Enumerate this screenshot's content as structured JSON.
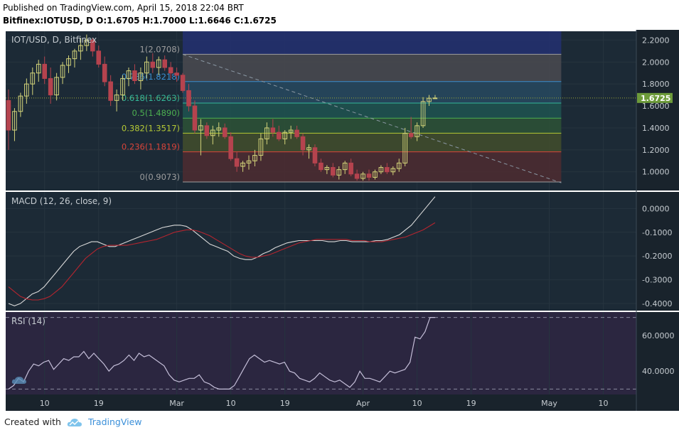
{
  "header": {
    "published": "Published on TradingView.com, April 15, 2018 22:04 BRT",
    "ohlc_line": "Bitfinex:IOTUSD, D  O:1.6705 H:1.7000 L:1.6646 C:1.6725"
  },
  "footer": {
    "created_with": "Created with",
    "brand": "TradingView"
  },
  "colors": {
    "background": "#1c2a36",
    "up": "#d4d47a",
    "down": "#b5434e",
    "last_price": "#6d9b3a",
    "macd_line": "#d9d9d9",
    "signal_line": "#b5252f",
    "rsi_line": "#c4bed8"
  },
  "chart_data": [
    {
      "type": "candlestick",
      "title": "IOT/USD, D, Bitfinex",
      "ylim": [
        0.83,
        2.28
      ],
      "y_ticks": [
        "2.2000",
        "2.0000",
        "1.8000",
        "1.6000",
        "1.4000",
        "1.2000",
        "1.0000"
      ],
      "y_tick_values": [
        2.2,
        2.0,
        1.8,
        1.6,
        1.4,
        1.2,
        1.0
      ],
      "x_ticks": [
        "10",
        "19",
        "Mar",
        "10",
        "19",
        "Apr",
        "10",
        "19",
        "May",
        "10"
      ],
      "x_tick_index": [
        6,
        15,
        28,
        37,
        46,
        59,
        68,
        77,
        90,
        99
      ],
      "last_price": 1.6725,
      "last_price_label": "1.6725",
      "candles": [
        [
          1.65,
          1.75,
          1.2,
          1.38
        ],
        [
          1.38,
          1.58,
          1.28,
          1.55
        ],
        [
          1.55,
          1.72,
          1.5,
          1.69
        ],
        [
          1.69,
          1.85,
          1.62,
          1.8
        ],
        [
          1.8,
          1.95,
          1.7,
          1.9
        ],
        [
          1.9,
          2.02,
          1.82,
          1.98
        ],
        [
          1.98,
          2.05,
          1.8,
          1.85
        ],
        [
          1.85,
          1.95,
          1.62,
          1.7
        ],
        [
          1.7,
          1.9,
          1.65,
          1.86
        ],
        [
          1.86,
          2.0,
          1.8,
          1.97
        ],
        [
          1.97,
          2.06,
          1.9,
          2.03
        ],
        [
          2.03,
          2.12,
          1.95,
          2.1
        ],
        [
          2.1,
          2.22,
          2.02,
          2.15
        ],
        [
          2.15,
          2.25,
          2.1,
          2.2
        ],
        [
          2.2,
          2.22,
          2.05,
          2.1
        ],
        [
          2.1,
          2.15,
          1.95,
          1.98
        ],
        [
          1.98,
          2.05,
          1.78,
          1.82
        ],
        [
          1.82,
          1.88,
          1.6,
          1.65
        ],
        [
          1.65,
          1.75,
          1.55,
          1.7
        ],
        [
          1.7,
          1.88,
          1.65,
          1.85
        ],
        [
          1.85,
          1.95,
          1.78,
          1.92
        ],
        [
          1.92,
          1.98,
          1.8,
          1.83
        ],
        [
          1.83,
          1.95,
          1.75,
          1.9
        ],
        [
          1.9,
          2.05,
          1.85,
          2.0
        ],
        [
          2.0,
          2.08,
          1.9,
          1.95
        ],
        [
          1.95,
          2.05,
          1.88,
          2.02
        ],
        [
          2.02,
          2.06,
          1.92,
          1.95
        ],
        [
          1.95,
          2.0,
          1.85,
          1.9
        ],
        [
          1.9,
          1.95,
          1.82,
          1.88
        ],
        [
          1.88,
          1.9,
          1.72,
          1.74
        ],
        [
          1.74,
          1.8,
          1.55,
          1.6
        ],
        [
          1.6,
          1.65,
          1.35,
          1.38
        ],
        [
          1.38,
          1.48,
          1.15,
          1.42
        ],
        [
          1.42,
          1.45,
          1.3,
          1.33
        ],
        [
          1.33,
          1.42,
          1.25,
          1.38
        ],
        [
          1.38,
          1.45,
          1.32,
          1.4
        ],
        [
          1.4,
          1.44,
          1.3,
          1.32
        ],
        [
          1.32,
          1.36,
          1.1,
          1.12
        ],
        [
          1.12,
          1.18,
          1.0,
          1.05
        ],
        [
          1.05,
          1.1,
          1.0,
          1.08
        ],
        [
          1.08,
          1.15,
          1.02,
          1.1
        ],
        [
          1.1,
          1.2,
          1.05,
          1.15
        ],
        [
          1.15,
          1.35,
          1.1,
          1.3
        ],
        [
          1.3,
          1.45,
          1.25,
          1.4
        ],
        [
          1.4,
          1.48,
          1.32,
          1.36
        ],
        [
          1.36,
          1.42,
          1.28,
          1.3
        ],
        [
          1.3,
          1.38,
          1.25,
          1.36
        ],
        [
          1.36,
          1.42,
          1.3,
          1.38
        ],
        [
          1.38,
          1.42,
          1.3,
          1.32
        ],
        [
          1.32,
          1.35,
          1.15,
          1.2
        ],
        [
          1.2,
          1.25,
          1.12,
          1.22
        ],
        [
          1.22,
          1.25,
          1.05,
          1.08
        ],
        [
          1.08,
          1.12,
          1.0,
          1.02
        ],
        [
          1.02,
          1.06,
          0.98,
          1.04
        ],
        [
          1.04,
          1.08,
          0.95,
          0.97
        ],
        [
          0.97,
          1.05,
          0.93,
          1.02
        ],
        [
          1.02,
          1.1,
          0.98,
          1.08
        ],
        [
          1.08,
          1.12,
          0.96,
          0.98
        ],
        [
          0.98,
          1.02,
          0.92,
          0.94
        ],
        [
          0.94,
          1.0,
          0.92,
          0.98
        ],
        [
          0.98,
          1.02,
          0.92,
          0.95
        ],
        [
          0.95,
          1.02,
          0.93,
          1.0
        ],
        [
          1.0,
          1.06,
          0.98,
          1.04
        ],
        [
          1.04,
          1.08,
          0.98,
          1.0
        ],
        [
          1.0,
          1.05,
          0.97,
          1.03
        ],
        [
          1.03,
          1.12,
          1.0,
          1.08
        ],
        [
          1.08,
          1.4,
          1.05,
          1.35
        ],
        [
          1.35,
          1.5,
          1.3,
          1.32
        ],
        [
          1.32,
          1.45,
          1.28,
          1.42
        ],
        [
          1.42,
          1.68,
          1.4,
          1.64
        ],
        [
          1.64,
          1.7,
          1.6,
          1.67
        ],
        [
          1.6705,
          1.7,
          1.6646,
          1.6725
        ]
      ],
      "fibonacci": [
        {
          "label": "1(2.0708)",
          "value": 2.0708,
          "color": "#9e9e9e",
          "fill": "#4a4a50"
        },
        {
          "label": "0.786(1.8218)",
          "value": 1.8218,
          "color": "#3b8ed0",
          "fill": "#27495f"
        },
        {
          "label": "0.618(1.6263)",
          "value": 1.6263,
          "color": "#34b89a",
          "fill": "#1f5350"
        },
        {
          "label": "0.5(1.4890)",
          "value": 1.489,
          "color": "#4caf50",
          "fill": "#2d5236"
        },
        {
          "label": "0.382(1.3517)",
          "value": 1.3517,
          "color": "#b5c935",
          "fill": "#424d2c"
        },
        {
          "label": "0.236(1.1819)",
          "value": 1.1819,
          "color": "#d9443a",
          "fill": "#4e2c30"
        },
        {
          "label": "0(0.9073)",
          "value": 0.9073,
          "color": "#9e9e9e",
          "fill": null
        }
      ],
      "fib_top_band": 2.28,
      "fib_top_fill": "#23306e",
      "fib_start_index": 29,
      "fib_end_index": 92,
      "trendline": {
        "start": [
          29,
          2.07
        ],
        "end": [
          92,
          0.9
        ]
      }
    },
    {
      "type": "line",
      "title": "MACD (12, 26, close, 9)",
      "ylim": [
        -0.43,
        0.07
      ],
      "y_ticks": [
        "0.0000",
        "-0.1000",
        "-0.2000",
        "-0.3000",
        "-0.4000"
      ],
      "y_tick_values": [
        0,
        -0.1,
        -0.2,
        -0.3,
        -0.4
      ],
      "series": [
        {
          "role": "macd",
          "values": [
            -0.4,
            -0.41,
            -0.4,
            -0.38,
            -0.36,
            -0.35,
            -0.33,
            -0.3,
            -0.27,
            -0.24,
            -0.21,
            -0.18,
            -0.16,
            -0.15,
            -0.14,
            -0.14,
            -0.15,
            -0.16,
            -0.16,
            -0.15,
            -0.14,
            -0.13,
            -0.12,
            -0.11,
            -0.1,
            -0.09,
            -0.08,
            -0.075,
            -0.07,
            -0.07,
            -0.075,
            -0.09,
            -0.11,
            -0.13,
            -0.15,
            -0.16,
            -0.17,
            -0.18,
            -0.2,
            -0.21,
            -0.215,
            -0.215,
            -0.205,
            -0.19,
            -0.18,
            -0.165,
            -0.155,
            -0.145,
            -0.14,
            -0.135,
            -0.135,
            -0.135,
            -0.135,
            -0.135,
            -0.14,
            -0.14,
            -0.135,
            -0.135,
            -0.14,
            -0.14,
            -0.14,
            -0.14,
            -0.135,
            -0.135,
            -0.13,
            -0.12,
            -0.11,
            -0.09,
            -0.07,
            -0.04,
            -0.01,
            0.02,
            0.05
          ]
        },
        {
          "role": "signal",
          "values": [
            -0.33,
            -0.35,
            -0.37,
            -0.38,
            -0.385,
            -0.385,
            -0.38,
            -0.37,
            -0.35,
            -0.33,
            -0.3,
            -0.27,
            -0.24,
            -0.21,
            -0.19,
            -0.17,
            -0.16,
            -0.155,
            -0.155,
            -0.155,
            -0.155,
            -0.15,
            -0.145,
            -0.14,
            -0.135,
            -0.13,
            -0.12,
            -0.11,
            -0.1,
            -0.095,
            -0.09,
            -0.09,
            -0.095,
            -0.105,
            -0.115,
            -0.13,
            -0.145,
            -0.16,
            -0.175,
            -0.19,
            -0.2,
            -0.205,
            -0.205,
            -0.2,
            -0.195,
            -0.185,
            -0.175,
            -0.165,
            -0.155,
            -0.145,
            -0.14,
            -0.135,
            -0.13,
            -0.13,
            -0.13,
            -0.13,
            -0.13,
            -0.13,
            -0.135,
            -0.135,
            -0.135,
            -0.14,
            -0.14,
            -0.14,
            -0.135,
            -0.13,
            -0.125,
            -0.12,
            -0.11,
            -0.1,
            -0.09,
            -0.075,
            -0.06
          ]
        }
      ]
    },
    {
      "type": "line",
      "title": "RSI (14)",
      "ylim": [
        27,
        73
      ],
      "y_ticks": [
        "60.0000",
        "40.0000"
      ],
      "y_tick_values": [
        60,
        40
      ],
      "bands": [
        70,
        30
      ],
      "series": [
        {
          "role": "rsi",
          "values": [
            30,
            32,
            36,
            34,
            40,
            44,
            43,
            45,
            46,
            41,
            44,
            47,
            46,
            48,
            48,
            51,
            47,
            50,
            47,
            44,
            40,
            43,
            44,
            46,
            49,
            46,
            50,
            48,
            49,
            47,
            45,
            43,
            38,
            35,
            34,
            35,
            36,
            36,
            38,
            34,
            33,
            31,
            30,
            30,
            30,
            32,
            37,
            42,
            47,
            49,
            47,
            45,
            46,
            45,
            44,
            45,
            40,
            39,
            36,
            35,
            34,
            36,
            39,
            37,
            35,
            34,
            35,
            33,
            31,
            34,
            40,
            36,
            36,
            35,
            34,
            37,
            40,
            39,
            40,
            41,
            45,
            59,
            58,
            62,
            70,
            70
          ]
        }
      ]
    }
  ]
}
